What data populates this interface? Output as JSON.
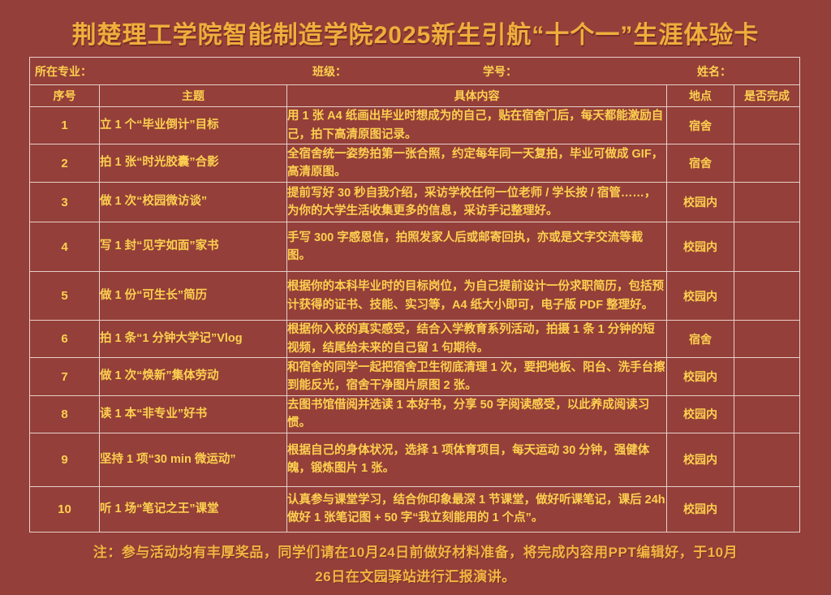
{
  "page": {
    "title": "荆楚理工学院智能制造学院2025新生引航“十个一”生涯体验卡",
    "note": "注：参与活动均有丰厚奖品，同学们请在10月24日前做好材料准备，将完成内容用PPT编辑好，于10月26日在文园驿站进行汇报演讲。"
  },
  "colors": {
    "background": "#943f39",
    "title_text": "#f0ae3c",
    "body_text": "#fdd04f",
    "table_border": "#e9cfca"
  },
  "info_fields": [
    {
      "label": "所在专业："
    },
    {
      "label": "班级："
    },
    {
      "label": "学号："
    },
    {
      "label": "姓名："
    }
  ],
  "columns": [
    "序号",
    "主题",
    "具体内容",
    "地点",
    "是否完成"
  ],
  "rows": [
    {
      "no": "1",
      "topic": "立 1 个“毕业倒计”目标",
      "detail": "用 1 张 A4 纸画出毕业时想成为的自己，贴在宿舍门后，每天都能激励自己，拍下高清原图记录。",
      "location": "宿舍",
      "done": ""
    },
    {
      "no": "2",
      "topic": "拍 1 张“时光胶囊”合影",
      "detail": "全宿舍统一姿势拍第一张合照，约定每年同一天复拍，毕业可做成 GIF，高清原图。",
      "location": "宿舍",
      "done": ""
    },
    {
      "no": "3",
      "topic": "做 1 次“校园微访谈”",
      "detail": "提前写好 30 秒自我介绍，采访学校任何一位老师 / 学长按 / 宿管……，为你的大学生活收集更多的信息，采访手记整理好。",
      "location": "校园内",
      "done": ""
    },
    {
      "no": "4",
      "topic": "写 1 封“见字如面”家书",
      "detail": "手写 300 字感恩信，拍照发家人后或邮寄回执，亦或是文字交流等截图。",
      "location": "校园内",
      "done": ""
    },
    {
      "no": "5",
      "topic": "做 1 份“可生长”简历",
      "detail": "根据你的本科毕业时的目标岗位，为自己提前设计一份求职简历，包括预计获得的证书、技能、实习等，A4 纸大小即可，电子版 PDF 整理好。",
      "location": "校园内",
      "done": ""
    },
    {
      "no": "6",
      "topic": "拍 1 条“1 分钟大学记”Vlog",
      "detail": "根据你入校的真实感受，结合入学教育系列活动，拍摄 1 条 1 分钟的短视频，结尾给未来的自己留 1 句期待。",
      "location": "宿舍",
      "done": ""
    },
    {
      "no": "7",
      "topic": "做 1 次“焕新”集体劳动",
      "detail": "和宿舍的同学一起把宿舍卫生彻底清理 1 次，要把地板、阳台、洗手台擦到能反光，宿舍干净图片原图 2 张。",
      "location": "校园内",
      "done": ""
    },
    {
      "no": "8",
      "topic": "读 1 本“非专业”好书",
      "detail": "去图书馆借阅并选读 1 本好书，分享 50 字阅读感受，以此养成阅读习惯。",
      "location": "校园内",
      "done": ""
    },
    {
      "no": "9",
      "topic": "坚持 1 项“30 min 微运动”",
      "detail": "根据自己的身体状况，选择 1 项体育项目，每天运动 30 分钟，强健体魄，锻炼图片 1 张。",
      "location": "校园内",
      "done": ""
    },
    {
      "no": "10",
      "topic": "听 1 场“笔记之王”课堂",
      "detail": "认真参与课堂学习，结合你印象最深 1 节课堂，做好听课笔记，课后 24h 做好 1 张笔记图 + 50 字“我立刻能用的 1 个点”。",
      "location": "校园内",
      "done": ""
    }
  ]
}
